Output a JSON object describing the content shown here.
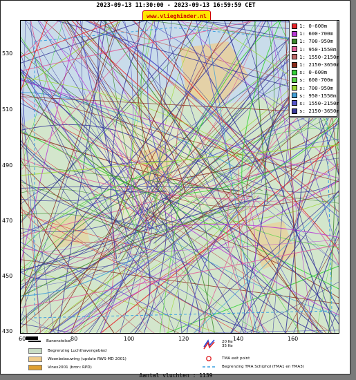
{
  "header": {
    "time_range": "2023-09-13 11:30:00 - 2023-09-13 16:59:59 CET",
    "site": "www.vlieghinder.nl"
  },
  "map": {
    "y_ticks": [
      "530",
      "510",
      "490",
      "470",
      "450",
      "430"
    ],
    "x_ticks": [
      "60",
      "80",
      "100",
      "120",
      "140",
      "160"
    ],
    "water_color": "#c9dcea",
    "land_color": "#d3e6cc",
    "airport_color": "#e2e8cc",
    "town_color": "#f0cc8a"
  },
  "legend": {
    "items": [
      {
        "label": "1: 0-600m",
        "color": "#e8262a"
      },
      {
        "label": "1: 600-700m",
        "color": "#b83ad6"
      },
      {
        "label": "1: 700-950m",
        "color": "#3d8a2e"
      },
      {
        "label": "1: 950-1550m",
        "color": "#e0609a"
      },
      {
        "label": "1: 1550-2150m",
        "color": "#c06a6a"
      },
      {
        "label": "1: 2150-3650m",
        "color": "#8b2c1c"
      },
      {
        "label": "s: 0-600m",
        "color": "#37d23a"
      },
      {
        "label": "s: 600-700m",
        "color": "#5ad24a"
      },
      {
        "label": "s: 700-950m",
        "color": "#9ed83a"
      },
      {
        "label": "s: 950-1550m",
        "color": "#44a0d8"
      },
      {
        "label": "s: 1550-2150m",
        "color": "#5656c8"
      },
      {
        "label": "s: 2150-3650m",
        "color": "#3a3a9a"
      }
    ]
  },
  "bottom_legend": {
    "runway": "Banenstelsel",
    "airport_boundary": "Begrenzing Luchthavengebied",
    "housing": "Woonbebouwing (update RWS-MD 2001)",
    "vinex": "Vinex2001 (bron: RPD)",
    "noise_20": "20 Ke",
    "noise_35": "35 Ke",
    "tma_exit": "TMA exit point",
    "tma_boundary": "Begrenzing TMA Schiphol  (TMA1 en TMA3)"
  },
  "footer": {
    "count": "Aantal vluchten : 1139"
  }
}
